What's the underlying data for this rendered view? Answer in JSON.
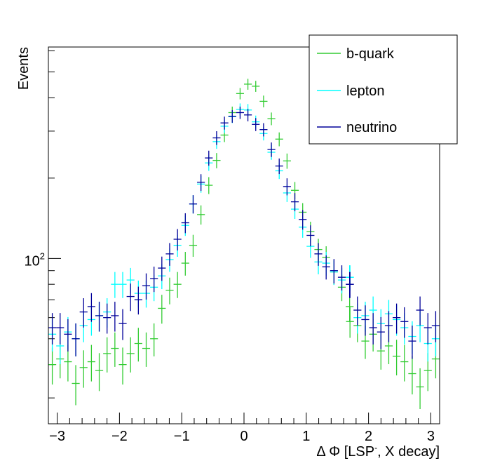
{
  "chart_data": {
    "type": "scatter",
    "xlabel": "Δ Φ [LSP, X decay]",
    "xlabel_parts": {
      "prefix": "Δ Φ [LSP",
      "superscript": "-",
      "suffix": ", X decay]"
    },
    "ylabel": "Events",
    "xlim": [
      -3.1416,
      3.1416
    ],
    "ylim": [
      24,
      620
    ],
    "y_scale": "log",
    "x_ticks": [
      -3,
      -2,
      -1,
      0,
      1,
      2,
      3
    ],
    "x_tick_labels": [
      "−3",
      "−2",
      "−1",
      "0",
      "1",
      "2",
      "3"
    ],
    "y_tick_label_main": "10",
    "y_tick_label_exp": "2",
    "grid": false,
    "legend_position": "top-right",
    "error_bars": "poisson (sqrt N)",
    "x": [
      -3.0788,
      -2.9531,
      -2.8274,
      -2.7018,
      -2.5761,
      -2.4504,
      -2.3248,
      -2.1991,
      -2.0735,
      -1.9478,
      -1.8221,
      -1.6965,
      -1.5708,
      -1.4451,
      -1.3195,
      -1.1938,
      -1.0681,
      -0.9425,
      -0.8168,
      -0.6912,
      -0.5655,
      -0.4398,
      -0.3142,
      -0.1885,
      -0.0628,
      0.0628,
      0.1885,
      0.3142,
      0.4398,
      0.5655,
      0.6912,
      0.8168,
      0.9425,
      1.0681,
      1.1938,
      1.3195,
      1.4451,
      1.5708,
      1.6965,
      1.7022,
      1.8221,
      1.9478,
      2.0735,
      2.1991,
      2.3248,
      2.4504,
      2.5761,
      2.7018,
      2.8274,
      2.9531,
      3.0788
    ],
    "series": [
      {
        "name": "b-quark",
        "color": "#33cc33",
        "values": [
          40,
          42,
          41,
          34,
          39,
          41,
          38,
          44,
          46,
          40,
          44,
          48,
          46,
          50,
          65,
          76,
          80,
          96,
          112,
          146,
          188,
          233,
          290,
          352,
          415,
          450,
          442,
          388,
          334,
          280,
          232,
          180,
          149,
          126,
          108,
          101,
          89,
          78,
          66,
          58,
          56,
          49,
          52,
          45,
          47,
          43,
          41,
          37,
          33,
          38,
          42
        ]
      },
      {
        "name": "lepton",
        "color": "#00ffff",
        "values": [
          52,
          47,
          53,
          50,
          56,
          59,
          61,
          63,
          80,
          80,
          83,
          74,
          74,
          78,
          86,
          99,
          112,
          133,
          160,
          190,
          228,
          274,
          313,
          340,
          362,
          360,
          325,
          294,
          250,
          213,
          176,
          153,
          131,
          111,
          97,
          96,
          89,
          83,
          85,
          85,
          60,
          61,
          64,
          57,
          62,
          59,
          55,
          51,
          56,
          48,
          50
        ]
      },
      {
        "name": "neutrino",
        "color": "#000099",
        "values": [
          55,
          55,
          52,
          50,
          63,
          66,
          61,
          60,
          61,
          57,
          72,
          70,
          79,
          84,
          92,
          104,
          118,
          136,
          160,
          193,
          238,
          283,
          322,
          341,
          352,
          345,
          318,
          304,
          256,
          222,
          186,
          163,
          140,
          122,
          104,
          93,
          90,
          85,
          80,
          80,
          64,
          59,
          55,
          53,
          56,
          60,
          58,
          49,
          64,
          55,
          56
        ]
      }
    ]
  }
}
